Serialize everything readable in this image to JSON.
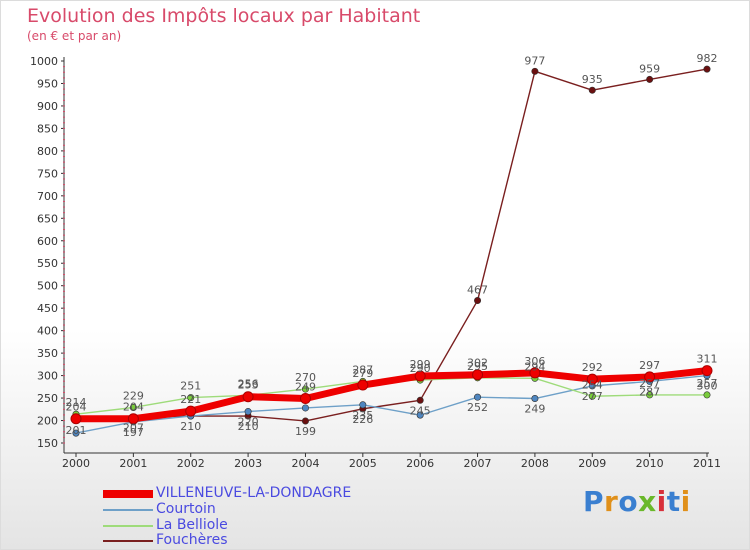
{
  "header": {
    "title": "Evolution des Impôts locaux par Habitant",
    "subtitle": "(en € et par an)"
  },
  "logo": {
    "text": "Proxiti"
  },
  "chart_data": {
    "type": "line",
    "title": "Evolution des Impôts locaux par Habitant",
    "subtitle": "(en € et par an)",
    "xlabel": "",
    "ylabel": "",
    "x": [
      "2000",
      "2001",
      "2002",
      "2003",
      "2004",
      "2005",
      "2006",
      "2007",
      "2008",
      "2009",
      "2010",
      "2011"
    ],
    "ylim": [
      150,
      1000
    ],
    "yticks": [
      "150",
      "200",
      "250",
      "300",
      "350",
      "400",
      "450",
      "500",
      "550",
      "600",
      "650",
      "700",
      "750",
      "800",
      "850",
      "900",
      "950",
      "1000"
    ],
    "grid": false,
    "legend_position": "bottom-left",
    "series": [
      {
        "name": "Fouchères",
        "color": "#7a1f1f",
        "marker": "#6b1010",
        "values": [
          201,
          207,
          210,
          210,
          199,
          226,
          245,
          467,
          977,
          935,
          959,
          982
        ]
      },
      {
        "name": "Courtoin",
        "color": "#6ea0c8",
        "marker": "#4f86c0",
        "values": [
          172,
          197,
          210,
          220,
          228,
          235,
          212,
          252,
          249,
          277,
          287,
          300
        ]
      },
      {
        "name": "La Belliole",
        "color": "#9edb7a",
        "marker": "#7acc3c",
        "values": [
          214,
          229,
          251,
          256,
          270,
          287,
          290,
          295,
          294,
          254,
          257,
          257
        ]
      },
      {
        "name": "VILLENEUVE-LA-DONDAGRE",
        "color": "#ee0000",
        "marker": "#ee0000",
        "values": [
          204,
          204,
          221,
          253,
          249,
          279,
          299,
          302,
          306,
          292,
          297,
          311
        ]
      }
    ],
    "data_labels": [
      {
        "series": "VILLENEUVE-LA-DONDAGRE",
        "x": "2000",
        "text": "204"
      },
      {
        "series": "VILLENEUVE-LA-DONDAGRE",
        "x": "2001",
        "text": "204"
      },
      {
        "series": "VILLENEUVE-LA-DONDAGRE",
        "x": "2002",
        "text": "221"
      },
      {
        "series": "VILLENEUVE-LA-DONDAGRE",
        "x": "2003",
        "text": "253"
      },
      {
        "series": "VILLENEUVE-LA-DONDAGRE",
        "x": "2004",
        "text": "249"
      },
      {
        "series": "VILLENEUVE-LA-DONDAGRE",
        "x": "2005",
        "text": "279"
      },
      {
        "series": "VILLENEUVE-LA-DONDAGRE",
        "x": "2006",
        "text": "299"
      },
      {
        "series": "VILLENEUVE-LA-DONDAGRE",
        "x": "2007",
        "text": "302"
      },
      {
        "series": "VILLENEUVE-LA-DONDAGRE",
        "x": "2008",
        "text": "306"
      },
      {
        "series": "VILLENEUVE-LA-DONDAGRE",
        "x": "2009",
        "text": "292"
      },
      {
        "series": "VILLENEUVE-LA-DONDAGRE",
        "x": "2010",
        "text": "297"
      },
      {
        "series": "VILLENEUVE-LA-DONDAGRE",
        "x": "2011",
        "text": "311"
      },
      {
        "series": "La Belliole",
        "x": "2000",
        "text": "214"
      },
      {
        "series": "La Belliole",
        "x": "2001",
        "text": "229"
      },
      {
        "series": "La Belliole",
        "x": "2002",
        "text": "251"
      },
      {
        "series": "La Belliole",
        "x": "2003",
        "text": "256"
      },
      {
        "series": "La Belliole",
        "x": "2004",
        "text": "270"
      },
      {
        "series": "La Belliole",
        "x": "2005",
        "text": "287"
      },
      {
        "series": "La Belliole",
        "x": "2006",
        "text": "290"
      },
      {
        "series": "La Belliole",
        "x": "2007",
        "text": "295"
      },
      {
        "series": "La Belliole",
        "x": "2008",
        "text": "294"
      },
      {
        "series": "La Belliole",
        "x": "2009",
        "text": "254"
      },
      {
        "series": "La Belliole",
        "x": "2010",
        "text": "257"
      },
      {
        "series": "La Belliole",
        "x": "2011",
        "text": "257"
      },
      {
        "series": "Courtoin",
        "x": "2001",
        "text": "197"
      },
      {
        "series": "Courtoin",
        "x": "2003",
        "text": "220"
      },
      {
        "series": "Courtoin",
        "x": "2005",
        "text": "235"
      },
      {
        "series": "Courtoin",
        "x": "2007",
        "text": "252"
      },
      {
        "series": "Courtoin",
        "x": "2008",
        "text": "249"
      },
      {
        "series": "Courtoin",
        "x": "2009",
        "text": "277"
      },
      {
        "series": "Courtoin",
        "x": "2010",
        "text": "287"
      },
      {
        "series": "Courtoin",
        "x": "2011",
        "text": "300"
      },
      {
        "series": "Fouchères",
        "x": "2000",
        "text": "201"
      },
      {
        "series": "Fouchères",
        "x": "2001",
        "text": "207"
      },
      {
        "series": "Fouchères",
        "x": "2002",
        "text": "210"
      },
      {
        "series": "Fouchères",
        "x": "2003",
        "text": "210"
      },
      {
        "series": "Fouchères",
        "x": "2004",
        "text": "199"
      },
      {
        "series": "Fouchères",
        "x": "2005",
        "text": "226"
      },
      {
        "series": "Fouchères",
        "x": "2006",
        "text": "245"
      },
      {
        "series": "Fouchères",
        "x": "2007",
        "text": "467"
      },
      {
        "series": "Fouchères",
        "x": "2008",
        "text": "977"
      },
      {
        "series": "Fouchères",
        "x": "2009",
        "text": "935"
      },
      {
        "series": "Fouchères",
        "x": "2010",
        "text": "959"
      },
      {
        "series": "Fouchères",
        "x": "2011",
        "text": "982"
      }
    ]
  },
  "legend": {
    "items": [
      {
        "label": "VILLENEUVE-LA-DONDAGRE",
        "color": "#ee0000"
      },
      {
        "label": "Courtoin",
        "color": "#6ea0c8"
      },
      {
        "label": "La Belliole",
        "color": "#9edb7a"
      },
      {
        "label": "Fouchères",
        "color": "#7a1f1f"
      }
    ],
    "label_color": "#4a4ae0"
  },
  "colors": {
    "title": "#d84a6a",
    "axis": "#333333",
    "label": "#333333"
  }
}
